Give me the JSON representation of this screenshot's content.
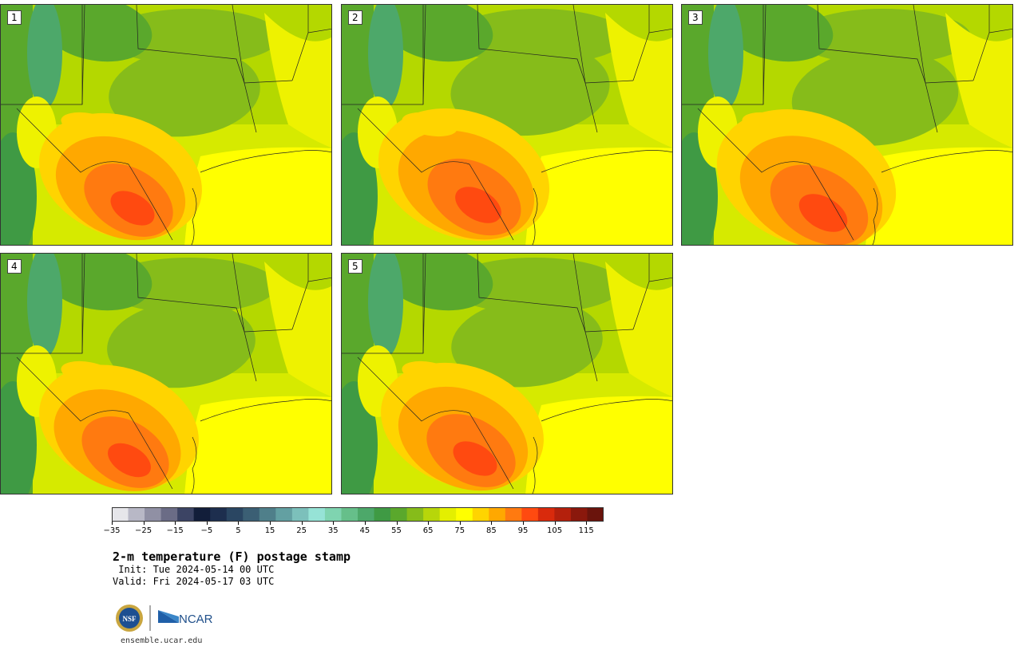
{
  "panels": [
    {
      "label": "1",
      "variant": 0
    },
    {
      "label": "2",
      "variant": 1
    },
    {
      "label": "3",
      "variant": 2
    },
    {
      "label": "4",
      "variant": 3
    },
    {
      "label": "5",
      "variant": 4
    }
  ],
  "colorbar": {
    "colors": [
      "#e6e6ea",
      "#b8b8c6",
      "#9090a4",
      "#6b6c86",
      "#3c4464",
      "#121e3a",
      "#1d2e4e",
      "#2a4662",
      "#3b5f74",
      "#4f7f8a",
      "#63a0a2",
      "#7cc0bb",
      "#96e3d6",
      "#7fd4b0",
      "#66bf8a",
      "#4da86a",
      "#3f9a44",
      "#5aa82c",
      "#86bc1a",
      "#b7d60a",
      "#e4ef00",
      "#ffff00",
      "#ffd400",
      "#ffa800",
      "#ff7a10",
      "#ff4a10",
      "#d92a0c",
      "#b4200c",
      "#8a180c",
      "#6a140c"
    ],
    "tick_labels": [
      "−35",
      "−25",
      "−15",
      "−5",
      "5",
      "15",
      "25",
      "35",
      "45",
      "55",
      "65",
      "75",
      "85",
      "95",
      "105",
      "115"
    ]
  },
  "title": "2-m temperature (F) postage stamp",
  "init_line": " Init: Tue 2024-05-14 00 UTC",
  "valid_line": "Valid: Fri 2024-05-17 03 UTC",
  "logos": {
    "nsf": "NSF",
    "ncar": "NCAR"
  },
  "url": "ensemble.ucar.edu"
}
